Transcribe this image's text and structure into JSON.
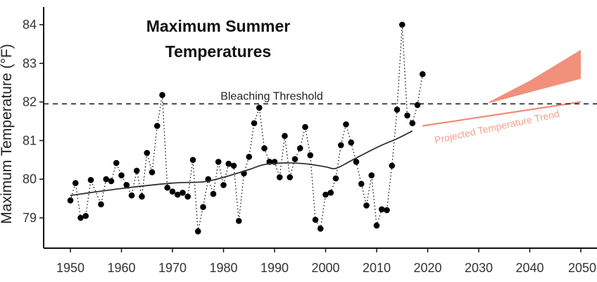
{
  "chart_data": {
    "type": "line",
    "title_lines": [
      "Maximum Summer",
      "Temperatures"
    ],
    "ylabel": "Maximum Temperature (°F)",
    "xlabel": "",
    "xlim": [
      1946,
      2050
    ],
    "ylim": [
      78.6,
      84.3
    ],
    "x_ticks": [
      1950,
      1960,
      1970,
      1980,
      1990,
      2000,
      2010,
      2020,
      2030,
      2040,
      2050
    ],
    "x_tick_labels": [
      "1950",
      "1960",
      "1970",
      "1980",
      "1990",
      "2000",
      "2010",
      "2020",
      "2030",
      "2040",
      "2050"
    ],
    "y_ticks": [
      79,
      80,
      81,
      82,
      83,
      84
    ],
    "y_tick_labels": [
      "79",
      "80",
      "81",
      "82",
      "83",
      "84"
    ],
    "threshold": {
      "value": 81.95,
      "label": "Bleaching Threshold"
    },
    "observed": {
      "style": "dotted line with points",
      "color": "#000000",
      "points": [
        [
          1950,
          79.45
        ],
        [
          1951,
          79.9
        ],
        [
          1952,
          79.0
        ],
        [
          1953,
          79.05
        ],
        [
          1954,
          79.98
        ],
        [
          1956,
          79.35
        ],
        [
          1957,
          80.0
        ],
        [
          1958,
          79.95
        ],
        [
          1959,
          80.42
        ],
        [
          1960,
          80.1
        ],
        [
          1961,
          79.85
        ],
        [
          1962,
          79.58
        ],
        [
          1963,
          80.22
        ],
        [
          1964,
          79.55
        ],
        [
          1965,
          80.68
        ],
        [
          1966,
          80.18
        ],
        [
          1967,
          81.38
        ],
        [
          1968,
          82.18
        ],
        [
          1969,
          79.78
        ],
        [
          1970,
          79.68
        ],
        [
          1971,
          79.6
        ],
        [
          1972,
          79.65
        ],
        [
          1973,
          79.55
        ],
        [
          1974,
          80.5
        ],
        [
          1975,
          78.65
        ],
        [
          1976,
          79.28
        ],
        [
          1977,
          80.0
        ],
        [
          1978,
          79.62
        ],
        [
          1979,
          80.45
        ],
        [
          1980,
          79.85
        ],
        [
          1981,
          80.4
        ],
        [
          1982,
          80.35
        ],
        [
          1983,
          78.92
        ],
        [
          1984,
          80.15
        ],
        [
          1985,
          80.58
        ],
        [
          1986,
          81.45
        ],
        [
          1987,
          81.85
        ],
        [
          1988,
          80.8
        ],
        [
          1989,
          80.45
        ],
        [
          1990,
          80.45
        ],
        [
          1991,
          80.05
        ],
        [
          1992,
          81.12
        ],
        [
          1993,
          80.05
        ],
        [
          1994,
          80.52
        ],
        [
          1995,
          80.8
        ],
        [
          1996,
          81.35
        ],
        [
          1997,
          80.62
        ],
        [
          1998,
          78.95
        ],
        [
          1999,
          78.72
        ],
        [
          2000,
          79.6
        ],
        [
          2001,
          79.65
        ],
        [
          2002,
          80.02
        ],
        [
          2003,
          80.88
        ],
        [
          2004,
          81.42
        ],
        [
          2005,
          80.95
        ],
        [
          2006,
          80.45
        ],
        [
          2007,
          79.88
        ],
        [
          2008,
          79.32
        ],
        [
          2009,
          80.1
        ],
        [
          2010,
          78.8
        ],
        [
          2011,
          79.22
        ],
        [
          2012,
          79.2
        ],
        [
          2013,
          80.35
        ],
        [
          2014,
          81.8
        ],
        [
          2015,
          84.0
        ],
        [
          2016,
          81.65
        ],
        [
          2017,
          81.45
        ],
        [
          2018,
          81.92
        ],
        [
          2019,
          82.72
        ]
      ]
    },
    "trend": {
      "color": "#333333",
      "points": [
        [
          1950,
          79.58
        ],
        [
          1960,
          79.76
        ],
        [
          1970,
          79.9
        ],
        [
          1976,
          79.93
        ],
        [
          1980,
          80.05
        ],
        [
          1985,
          80.25
        ],
        [
          1988,
          80.38
        ],
        [
          1992,
          80.42
        ],
        [
          1996,
          80.4
        ],
        [
          2000,
          80.32
        ],
        [
          2002,
          80.28
        ],
        [
          2005,
          80.48
        ],
        [
          2010,
          80.82
        ],
        [
          2014,
          81.05
        ],
        [
          2017,
          81.25
        ]
      ]
    },
    "projection": {
      "label": "Projected Temperature Trend",
      "color": "#f08a74",
      "line": [
        [
          2019,
          81.38
        ],
        [
          2050,
          82.0
        ]
      ],
      "band_upper": [
        [
          2032,
          82.0
        ],
        [
          2040,
          82.55
        ],
        [
          2050,
          83.35
        ]
      ],
      "band_lower": [
        [
          2050,
          82.6
        ],
        [
          2040,
          82.25
        ],
        [
          2032,
          81.97
        ]
      ]
    }
  }
}
